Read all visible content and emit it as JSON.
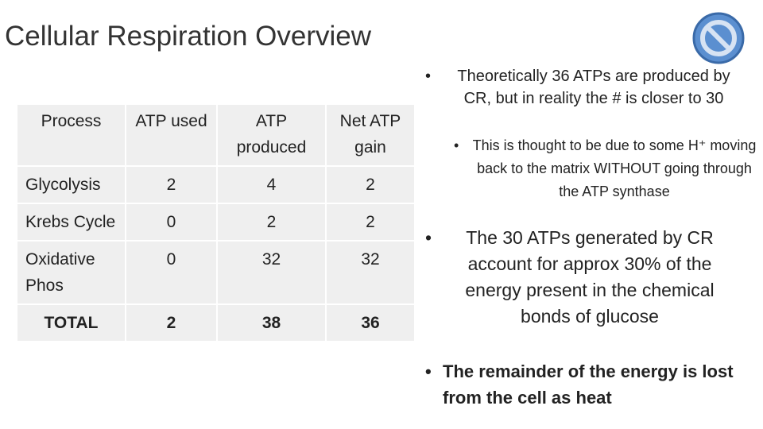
{
  "header": {
    "title": "Cellular Respiration Overview"
  },
  "table": {
    "columns": [
      "Process",
      "ATP used",
      "ATP produced",
      "Net ATP gain"
    ],
    "rows": [
      [
        "Glycolysis",
        "2",
        "4",
        "2"
      ],
      [
        "Krebs Cycle",
        "0",
        "2",
        "2"
      ],
      [
        "Oxidative Phos",
        "0",
        "32",
        "32"
      ],
      [
        "TOTAL",
        "2",
        "38",
        "36"
      ]
    ]
  },
  "bullets": [
    {
      "text": "Theoretically 36 ATPs are produced by CR, but in reality the # is closer to 30",
      "sub": [
        "This is thought to be due to some H⁺ moving back to the matrix WITHOUT going through the ATP synthase"
      ]
    },
    {
      "text": "The 30 ATPs generated by CR account for approx 30% of the energy present in the chemical bonds of glucose"
    },
    {
      "text": "The remainder of the energy is lost from the cell as heat"
    }
  ]
}
